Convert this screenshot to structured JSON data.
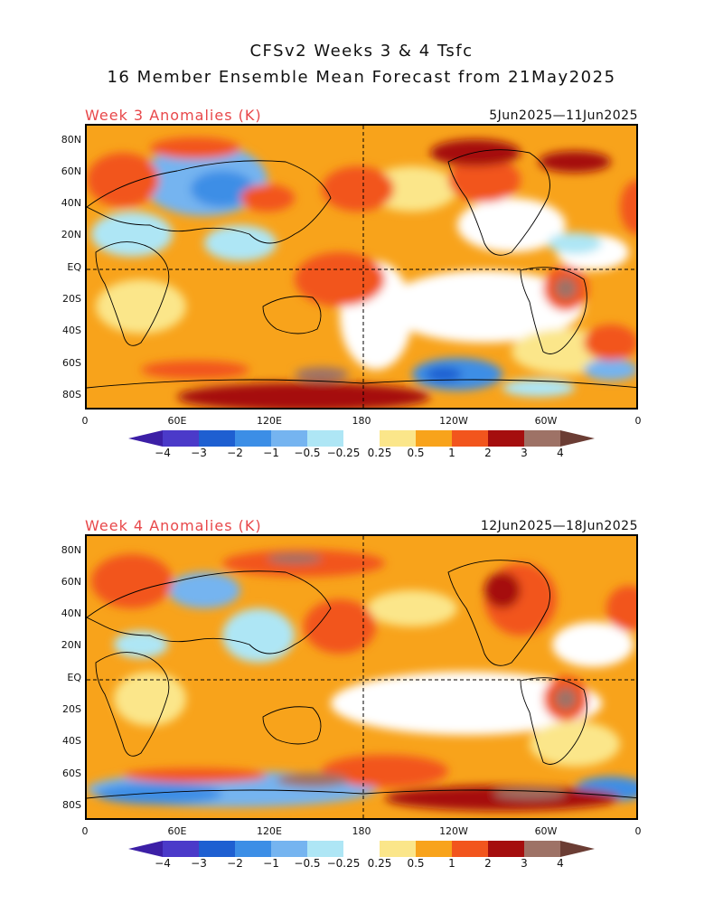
{
  "title_line1": "CFSv2 Weeks 3 & 4 Tsfc",
  "title_line2": "16 Member Ensemble Mean Forecast from 21May2025",
  "panels": [
    {
      "label": "Week 3 Anomalies (K)",
      "date_range": "5Jun2025—11Jun2025"
    },
    {
      "label": "Week 4 Anomalies (K)",
      "date_range": "12Jun2025—18Jun2025"
    }
  ],
  "lat_labels": [
    "80N",
    "60N",
    "40N",
    "20N",
    "EQ",
    "20S",
    "40S",
    "60S",
    "80S"
  ],
  "lon_labels": [
    "0",
    "60E",
    "120E",
    "180",
    "120W",
    "60W",
    "0"
  ],
  "colorbar": {
    "labels": [
      "−4",
      "−3",
      "−2",
      "−1",
      "−0.5",
      "−0.25",
      "0.25",
      "0.5",
      "1",
      "2",
      "3",
      "4"
    ],
    "colors": [
      "#3c1fa6",
      "#4b3ac9",
      "#1e5fd1",
      "#3c8ee6",
      "#75b4f0",
      "#aee6f5",
      "#ffffff",
      "#fbe68a",
      "#f8a31b",
      "#f2551d",
      "#a50e0e",
      "#9e7266",
      "#6b3d34"
    ]
  },
  "colors": {
    "label_red": "#e8484a"
  }
}
